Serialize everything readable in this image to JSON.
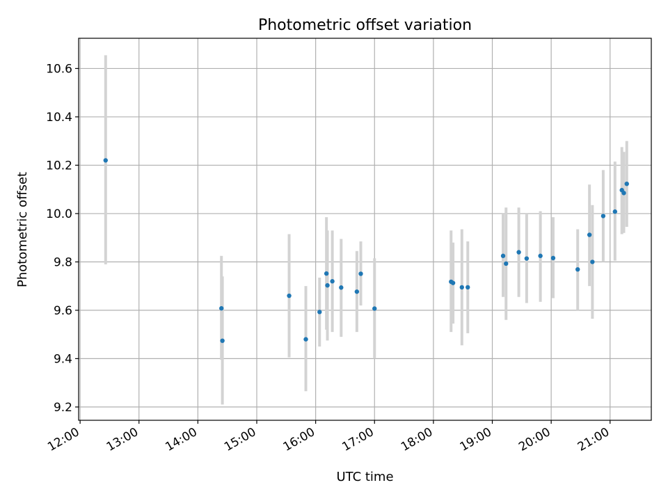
{
  "chart_data": {
    "type": "scatter",
    "title": "Photometric offset variation",
    "xlabel": "UTC time",
    "ylabel": "Photometric offset",
    "x_unit": "minutes after 12:00 UTC",
    "xlim": [
      -1.5,
      582
    ],
    "ylim": [
      9.145,
      10.725
    ],
    "x_ticks": [
      {
        "value": 0,
        "label": "12:00"
      },
      {
        "value": 60,
        "label": "13:00"
      },
      {
        "value": 120,
        "label": "14:00"
      },
      {
        "value": 180,
        "label": "15:00"
      },
      {
        "value": 240,
        "label": "16:00"
      },
      {
        "value": 300,
        "label": "17:00"
      },
      {
        "value": 360,
        "label": "18:00"
      },
      {
        "value": 420,
        "label": "19:00"
      },
      {
        "value": 480,
        "label": "20:00"
      },
      {
        "value": 540,
        "label": "21:00"
      }
    ],
    "y_ticks": [
      {
        "value": 9.2,
        "label": "9.2"
      },
      {
        "value": 9.4,
        "label": "9.4"
      },
      {
        "value": 9.6,
        "label": "9.6"
      },
      {
        "value": 9.8,
        "label": "9.8"
      },
      {
        "value": 10.0,
        "label": "10.0"
      },
      {
        "value": 10.2,
        "label": "10.2"
      },
      {
        "value": 10.4,
        "label": "10.4"
      },
      {
        "value": 10.6,
        "label": "10.6"
      }
    ],
    "grid": true,
    "colors": {
      "point": "#1f77b4",
      "errorbar": "#d3d3d3",
      "grid": "#b0b0b0"
    },
    "points": [
      {
        "x": 26,
        "y": 10.22,
        "lo": 9.79,
        "hi": 10.655
      },
      {
        "x": 144,
        "y": 9.608,
        "lo": 9.395,
        "hi": 9.825
      },
      {
        "x": 145,
        "y": 9.474,
        "lo": 9.21,
        "hi": 9.74
      },
      {
        "x": 213,
        "y": 9.66,
        "lo": 9.405,
        "hi": 9.915
      },
      {
        "x": 230,
        "y": 9.48,
        "lo": 9.265,
        "hi": 9.7
      },
      {
        "x": 244,
        "y": 9.593,
        "lo": 9.45,
        "hi": 9.735
      },
      {
        "x": 251,
        "y": 9.752,
        "lo": 9.52,
        "hi": 9.985
      },
      {
        "x": 252,
        "y": 9.703,
        "lo": 9.475,
        "hi": 9.93
      },
      {
        "x": 257,
        "y": 9.72,
        "lo": 9.51,
        "hi": 9.93
      },
      {
        "x": 266,
        "y": 9.694,
        "lo": 9.49,
        "hi": 9.895
      },
      {
        "x": 282,
        "y": 9.677,
        "lo": 9.51,
        "hi": 9.845
      },
      {
        "x": 286,
        "y": 9.751,
        "lo": 9.62,
        "hi": 9.885
      },
      {
        "x": 300,
        "y": 9.607,
        "lo": 9.4,
        "hi": 9.815
      },
      {
        "x": 378,
        "y": 9.718,
        "lo": 9.51,
        "hi": 9.93
      },
      {
        "x": 380,
        "y": 9.713,
        "lo": 9.545,
        "hi": 9.88
      },
      {
        "x": 389,
        "y": 9.695,
        "lo": 9.455,
        "hi": 9.935
      },
      {
        "x": 395,
        "y": 9.695,
        "lo": 9.505,
        "hi": 9.885
      },
      {
        "x": 431,
        "y": 9.825,
        "lo": 9.655,
        "hi": 10.0
      },
      {
        "x": 434,
        "y": 9.793,
        "lo": 9.56,
        "hi": 10.025
      },
      {
        "x": 447,
        "y": 9.84,
        "lo": 9.655,
        "hi": 10.025
      },
      {
        "x": 455,
        "y": 9.814,
        "lo": 9.63,
        "hi": 10.0
      },
      {
        "x": 469,
        "y": 9.825,
        "lo": 9.635,
        "hi": 10.01
      },
      {
        "x": 482,
        "y": 9.816,
        "lo": 9.65,
        "hi": 9.985
      },
      {
        "x": 507,
        "y": 9.769,
        "lo": 9.6,
        "hi": 9.935
      },
      {
        "x": 519,
        "y": 9.912,
        "lo": 9.7,
        "hi": 10.12
      },
      {
        "x": 522,
        "y": 9.8,
        "lo": 9.565,
        "hi": 10.035
      },
      {
        "x": 533,
        "y": 9.99,
        "lo": 9.8,
        "hi": 10.18
      },
      {
        "x": 545,
        "y": 10.008,
        "lo": 9.805,
        "hi": 10.215
      },
      {
        "x": 552,
        "y": 10.097,
        "lo": 9.915,
        "hi": 10.275
      },
      {
        "x": 554,
        "y": 10.085,
        "lo": 9.92,
        "hi": 10.255
      },
      {
        "x": 557,
        "y": 10.123,
        "lo": 9.945,
        "hi": 10.3
      }
    ]
  }
}
